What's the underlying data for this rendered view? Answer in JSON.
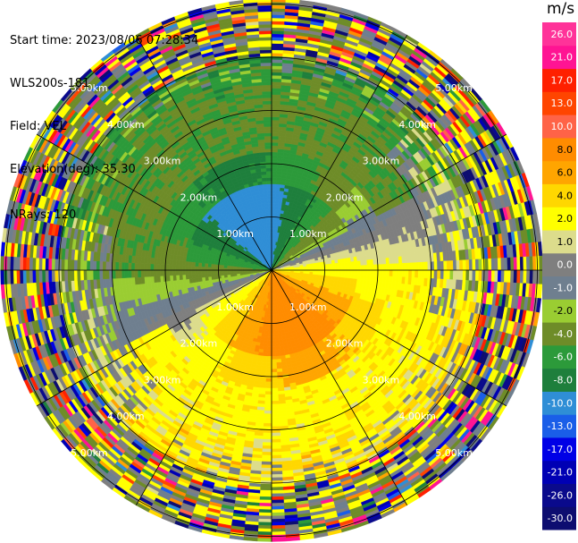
{
  "info": {
    "start_time": "Start time: 2023/08/06 07:28:34",
    "instrument": "WLS200s-181",
    "field": "Field: VEL",
    "elevation": "Elevation(deg): 35.30",
    "nrays": "NRays: 120"
  },
  "chart_data": {
    "type": "heatmap",
    "projection": "polar-ppi",
    "field": "VEL",
    "unit": "m/s",
    "rays": 120,
    "range_rings_km": [
      1,
      2,
      3,
      4,
      5
    ],
    "range_ring_labels": [
      "1.00km",
      "2.00km",
      "3.00km",
      "4.00km",
      "5.00km"
    ],
    "max_range_km": 5.1,
    "spokes_deg": [
      0,
      30,
      60,
      90,
      120,
      150,
      180,
      210,
      240,
      270,
      300,
      330
    ],
    "colorbar": {
      "unit_label": "m/s",
      "boundaries": [
        -30.0,
        -26.0,
        -21.0,
        -17.0,
        -13.0,
        -10.0,
        -8.0,
        -6.0,
        -4.0,
        -2.0,
        -1.0,
        0.0,
        1.0,
        2.0,
        4.0,
        6.0,
        8.0,
        10.0,
        13.0,
        17.0,
        21.0,
        26.0
      ],
      "tick_labels": [
        "-30.0",
        "-26.0",
        "-21.0",
        "-17.0",
        "-13.0",
        "-10.0",
        "-8.0",
        "-6.0",
        "-4.0",
        "-2.0",
        "-1.0",
        "0.0",
        "1.0",
        "2.0",
        "4.0",
        "6.0",
        "8.0",
        "10.0",
        "13.0",
        "17.0",
        "21.0",
        "26.0"
      ],
      "colors": [
        "#0d0d70",
        "#0a0a8c",
        "#0000b4",
        "#0000e6",
        "#1a5ee8",
        "#2f8ed6",
        "#1e7f3c",
        "#2c9a3a",
        "#6e8c28",
        "#9acd32",
        "#6f7f8f",
        "#7f7f7f",
        "#dcdc8c",
        "#ffff00",
        "#ffd700",
        "#ffa500",
        "#ff8c00",
        "#ff6347",
        "#ff4500",
        "#ff2000",
        "#ff1493",
        "#ff3399"
      ]
    },
    "pattern": {
      "near_field": "negative (green/blue) to the north, positive (orange/red) to the south",
      "far_field": "noisy mixed values beyond about 4 km"
    }
  }
}
